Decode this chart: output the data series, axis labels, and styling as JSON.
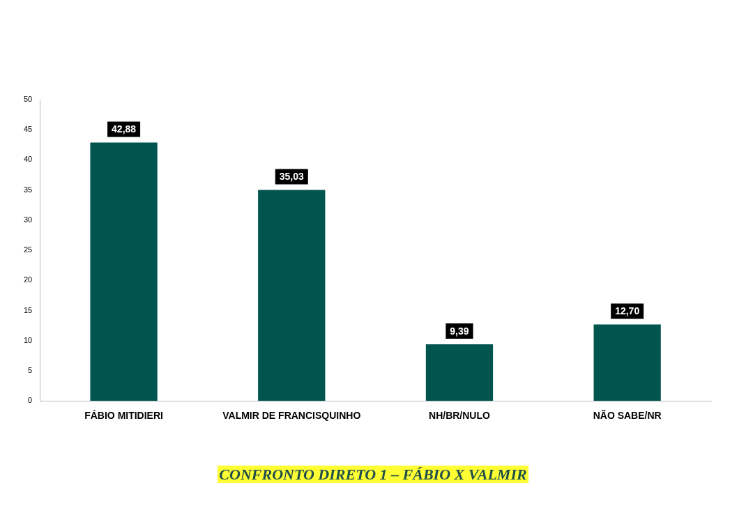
{
  "chart_data": {
    "type": "bar",
    "title": "CONFRONTO DIRETO 1 – FÁBIO X VALMIR",
    "categories": [
      "FÁBIO MITIDIERI",
      "VALMIR DE FRANCISQUINHO",
      "NH/BR/NULO",
      "NÃO SABE/NR"
    ],
    "values": [
      42.88,
      35.03,
      9.39,
      12.7
    ],
    "value_labels": [
      "42,88",
      "35,03",
      "9,39",
      "12,70"
    ],
    "color": "#02544f",
    "ylim": [
      0,
      50
    ],
    "yticks": [
      0,
      5,
      10,
      15,
      20,
      25,
      30,
      35,
      40,
      45,
      50
    ],
    "grid": false,
    "legend": false
  }
}
